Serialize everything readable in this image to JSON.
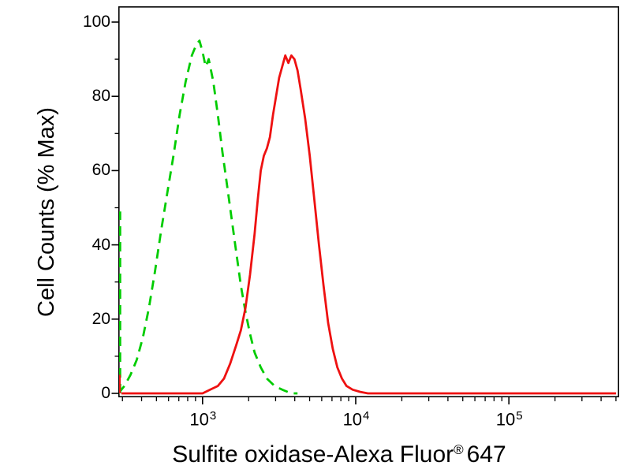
{
  "figure": {
    "background": "#ffffff",
    "frame_color": "#000000"
  },
  "chart_data": {
    "type": "line",
    "subtype": "flow-cytometry-histogram-overlay",
    "title": "",
    "ylabel": "Cell Counts (% Max)",
    "xlabel": {
      "text": "Sulfite oxidase-Alexa Fluor",
      "registered": "®",
      "suffix": "647"
    },
    "x_scale": "log10",
    "x_domain_log": [
      2.45,
      5.72
    ],
    "y_domain": [
      0,
      100
    ],
    "grid": false,
    "legend": "none",
    "frame_color": "#000000",
    "x_major_ticks": [
      {
        "log": 3,
        "base": "10",
        "exp": "3"
      },
      {
        "log": 4,
        "base": "10",
        "exp": "4"
      },
      {
        "log": 5,
        "base": "10",
        "exp": "5"
      }
    ],
    "x_minor_ticks_log": [
      2.477,
      2.602,
      2.699,
      2.778,
      2.845,
      2.903,
      2.954,
      3.301,
      3.477,
      3.602,
      3.699,
      3.778,
      3.845,
      3.903,
      3.954,
      4.301,
      4.477,
      4.602,
      4.699,
      4.778,
      4.845,
      4.903,
      4.954,
      5.301,
      5.477,
      5.602,
      5.699
    ],
    "y_major_ticks": [
      0,
      20,
      40,
      60,
      80,
      100
    ],
    "y_minor_ticks": [
      10,
      30,
      50,
      70,
      90
    ],
    "series": [
      {
        "name": "negative-control",
        "style": "dashed",
        "color": "#00cc00",
        "stroke_width": 2.8,
        "dash": "12 8",
        "points_log_pct": [
          [
            2.45,
            0
          ],
          [
            2.49,
            2
          ],
          [
            2.53,
            5
          ],
          [
            2.57,
            9
          ],
          [
            2.61,
            15
          ],
          [
            2.65,
            23
          ],
          [
            2.69,
            33
          ],
          [
            2.73,
            44
          ],
          [
            2.77,
            54
          ],
          [
            2.81,
            64
          ],
          [
            2.85,
            75
          ],
          [
            2.89,
            84
          ],
          [
            2.93,
            91
          ],
          [
            2.96,
            94
          ],
          [
            2.98,
            95
          ],
          [
            3.0,
            92
          ],
          [
            3.02,
            88
          ],
          [
            3.04,
            90
          ],
          [
            3.07,
            84
          ],
          [
            3.1,
            75
          ],
          [
            3.13,
            65
          ],
          [
            3.16,
            56
          ],
          [
            3.19,
            47
          ],
          [
            3.22,
            38
          ],
          [
            3.25,
            29
          ],
          [
            3.28,
            22
          ],
          [
            3.31,
            16
          ],
          [
            3.34,
            11
          ],
          [
            3.38,
            7
          ],
          [
            3.42,
            4
          ],
          [
            3.47,
            2
          ],
          [
            3.52,
            1
          ],
          [
            3.58,
            0
          ],
          [
            3.62,
            0
          ]
        ]
      },
      {
        "name": "negative-control-edge-spike",
        "style": "dashed",
        "color": "#00cc00",
        "stroke_width": 2.8,
        "dash": "12 8",
        "points_log_pct": [
          [
            2.462,
            0
          ],
          [
            2.462,
            49
          ]
        ]
      },
      {
        "name": "sulfite-oxidase-alexa-fluor-647",
        "style": "solid",
        "color": "#ee1111",
        "stroke_width": 2.8,
        "dash": "",
        "points_log_pct": [
          [
            2.47,
            0
          ],
          [
            3.0,
            0
          ],
          [
            3.05,
            1
          ],
          [
            3.1,
            2
          ],
          [
            3.14,
            4
          ],
          [
            3.18,
            8
          ],
          [
            3.22,
            13
          ],
          [
            3.25,
            17
          ],
          [
            3.28,
            23
          ],
          [
            3.31,
            32
          ],
          [
            3.34,
            43
          ],
          [
            3.36,
            52
          ],
          [
            3.38,
            60
          ],
          [
            3.4,
            64
          ],
          [
            3.42,
            66
          ],
          [
            3.44,
            69
          ],
          [
            3.46,
            75
          ],
          [
            3.48,
            80
          ],
          [
            3.5,
            85
          ],
          [
            3.52,
            88
          ],
          [
            3.54,
            91
          ],
          [
            3.56,
            89
          ],
          [
            3.58,
            91
          ],
          [
            3.6,
            90
          ],
          [
            3.62,
            87
          ],
          [
            3.64,
            82
          ],
          [
            3.67,
            74
          ],
          [
            3.7,
            64
          ],
          [
            3.73,
            52
          ],
          [
            3.76,
            40
          ],
          [
            3.79,
            29
          ],
          [
            3.82,
            19
          ],
          [
            3.85,
            12
          ],
          [
            3.88,
            7
          ],
          [
            3.91,
            4
          ],
          [
            3.94,
            2
          ],
          [
            3.98,
            1
          ],
          [
            4.03,
            0.4
          ],
          [
            4.08,
            0
          ],
          [
            5.7,
            0
          ]
        ]
      },
      {
        "name": "sample-edge-spike",
        "style": "solid",
        "color": "#ee1111",
        "stroke_width": 2.8,
        "dash": "",
        "points_log_pct": [
          [
            2.458,
            0
          ],
          [
            2.458,
            5
          ]
        ]
      }
    ]
  }
}
